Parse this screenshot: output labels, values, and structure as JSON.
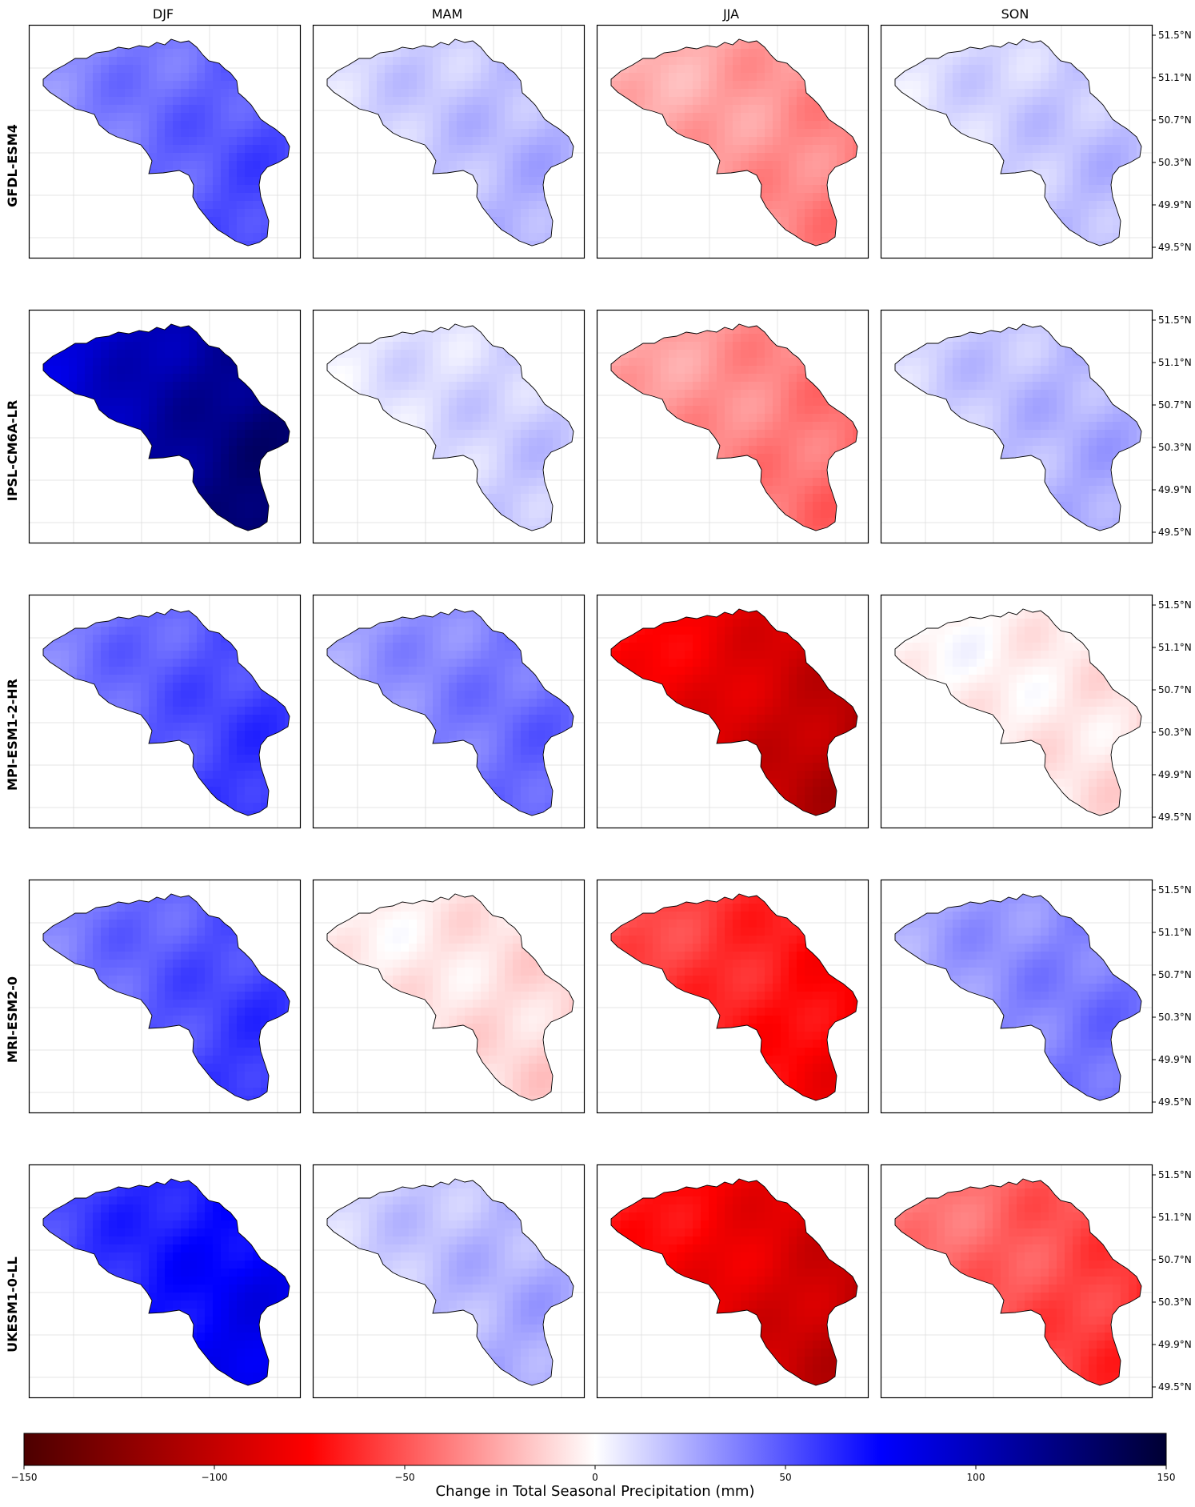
{
  "figure": {
    "columns": [
      "DJF",
      "MAM",
      "JJA",
      "SON"
    ],
    "rows": [
      "GFDL-ESM4",
      "IPSL-CM6A-LR",
      "MPI-ESM1-2-HR",
      "MRI-ESM2-0",
      "UKESM1-0-LL"
    ],
    "lat_ticks": [
      "51.5°N",
      "51.1°N",
      "50.7°N",
      "50.3°N",
      "49.9°N",
      "49.5°N"
    ]
  },
  "chart_data": {
    "type": "heatmap",
    "description_units": "mm",
    "colorbar": {
      "title": "Change in Total Seasonal Precipitation (mm)",
      "ticks": [
        "−150",
        "−100",
        "−50",
        "0",
        "50",
        "100",
        "150"
      ],
      "range": [
        -150,
        150
      ],
      "colormap": "seismic_r",
      "stops": [
        "#4c0000",
        "#ff0000",
        "#ffffff",
        "#0000ff",
        "#000033"
      ]
    },
    "panels": [
      {
        "model": "GFDL-ESM4",
        "season": "DJF",
        "approx_mean_change": 45
      },
      {
        "model": "GFDL-ESM4",
        "season": "MAM",
        "approx_mean_change": 18
      },
      {
        "model": "GFDL-ESM4",
        "season": "JJA",
        "approx_mean_change": -30
      },
      {
        "model": "GFDL-ESM4",
        "season": "SON",
        "approx_mean_change": 15
      },
      {
        "model": "IPSL-CM6A-LR",
        "season": "DJF",
        "approx_mean_change": 110
      },
      {
        "model": "IPSL-CM6A-LR",
        "season": "MAM",
        "approx_mean_change": 12
      },
      {
        "model": "IPSL-CM6A-LR",
        "season": "JJA",
        "approx_mean_change": -35
      },
      {
        "model": "IPSL-CM6A-LR",
        "season": "SON",
        "approx_mean_change": 20
      },
      {
        "model": "MPI-ESM1-2-HR",
        "season": "DJF",
        "approx_mean_change": 50
      },
      {
        "model": "MPI-ESM1-2-HR",
        "season": "MAM",
        "approx_mean_change": 38
      },
      {
        "model": "MPI-ESM1-2-HR",
        "season": "JJA",
        "approx_mean_change": -90
      },
      {
        "model": "MPI-ESM1-2-HR",
        "season": "SON",
        "approx_mean_change": -5
      },
      {
        "model": "MRI-ESM2-0",
        "season": "DJF",
        "approx_mean_change": 50
      },
      {
        "model": "MRI-ESM2-0",
        "season": "MAM",
        "approx_mean_change": -8
      },
      {
        "model": "MRI-ESM2-0",
        "season": "JJA",
        "approx_mean_change": -65
      },
      {
        "model": "MRI-ESM2-0",
        "season": "SON",
        "approx_mean_change": 35
      },
      {
        "model": "UKESM1-0-LL",
        "season": "DJF",
        "approx_mean_change": 70
      },
      {
        "model": "UKESM1-0-LL",
        "season": "MAM",
        "approx_mean_change": 20
      },
      {
        "model": "UKESM1-0-LL",
        "season": "JJA",
        "approx_mean_change": -85
      },
      {
        "model": "UKESM1-0-LL",
        "season": "SON",
        "approx_mean_change": -50
      }
    ]
  }
}
